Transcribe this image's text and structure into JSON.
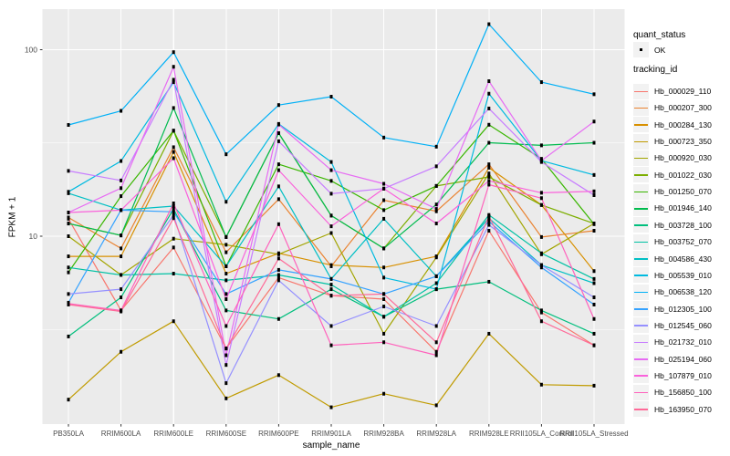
{
  "figure": {
    "background": "#FFFFFF",
    "panel_bg": "#EBEBEB",
    "grid_color": "#FFFFFF",
    "tick_color": "#333333",
    "tick_label_color": "#4D4D4D",
    "point_color": "#000000"
  },
  "legend": {
    "quant_status_title": "quant_status",
    "quant_status_items": [
      {
        "label": "OK"
      }
    ],
    "tracking_title": "tracking_id"
  },
  "chart_data": {
    "type": "line",
    "title": "",
    "xlabel": "sample_name",
    "ylabel": "FPKM + 1",
    "y_scale": "log10",
    "grid": true,
    "legend_position": "right",
    "ylim": [
      1,
      165
    ],
    "y_ticks": [
      {
        "value": 10,
        "label": "10"
      },
      {
        "value": 100,
        "label": "100"
      }
    ],
    "y_minor": [
      3.1623,
      31.623
    ],
    "categories": [
      "PB350LA",
      "RRIM600LA",
      "RRIM600LE",
      "RRIM600SE",
      "RRIM600PE",
      "RRIM901LA",
      "RRIM928BA",
      "RRIM928LA",
      "RRIM928LE",
      "RRII105LA_Control",
      "RRII105LA_Stressed"
    ],
    "series": [
      {
        "name": "Hb_000029_110",
        "color": "#F8766D",
        "values": [
          12.4,
          4.0,
          8.7,
          2.5,
          6.0,
          4.8,
          4.6,
          2.4,
          10.7,
          3.9,
          2.6
        ]
      },
      {
        "name": "Hb_000207_300",
        "color": "#EA8331",
        "values": [
          12.6,
          8.6,
          30.0,
          8.2,
          15.8,
          6.9,
          15.6,
          13.6,
          24.3,
          9.9,
          10.7
        ]
      },
      {
        "name": "Hb_000284_130",
        "color": "#D89000",
        "values": [
          7.8,
          7.8,
          28.3,
          6.3,
          8.1,
          7.0,
          6.8,
          7.8,
          23.3,
          14.7,
          6.5
        ]
      },
      {
        "name": "Hb_000723_350",
        "color": "#C09B00",
        "values": [
          1.33,
          2.4,
          3.5,
          1.35,
          1.8,
          1.21,
          1.43,
          1.24,
          3.0,
          1.6,
          1.58
        ]
      },
      {
        "name": "Hb_000920_030",
        "color": "#A3A500",
        "values": [
          10.0,
          6.2,
          9.7,
          9.0,
          8.0,
          10.4,
          3.0,
          7.7,
          21.7,
          8.0,
          11.7
        ]
      },
      {
        "name": "Hb_001022_030",
        "color": "#7CAE00",
        "values": [
          11.7,
          10.1,
          36.8,
          9.9,
          35.7,
          12.9,
          8.6,
          18.6,
          20.8,
          14.7,
          11.7
        ]
      },
      {
        "name": "Hb_001250_070",
        "color": "#39B600",
        "values": [
          6.4,
          16.4,
          36.8,
          6.9,
          24.3,
          19.8,
          13.8,
          18.6,
          39.6,
          26.0,
          11.6
        ]
      },
      {
        "name": "Hb_001946_140",
        "color": "#00BB4E",
        "values": [
          11.7,
          10.1,
          48.7,
          9.9,
          35.7,
          12.9,
          8.6,
          14.8,
          31.7,
          30.7,
          31.7
        ]
      },
      {
        "name": "Hb_003728_100",
        "color": "#00BF7D",
        "values": [
          2.9,
          4.7,
          14.0,
          4.0,
          3.6,
          5.2,
          3.7,
          5.2,
          5.7,
          4.0,
          3.0
        ]
      },
      {
        "name": "Hb_003752_070",
        "color": "#00C1A3",
        "values": [
          6.8,
          6.2,
          6.3,
          5.8,
          6.2,
          5.5,
          3.7,
          5.6,
          13.0,
          8.1,
          5.9
        ]
      },
      {
        "name": "Hb_004586_430",
        "color": "#00BFC4",
        "values": [
          17.0,
          13.8,
          14.5,
          6.9,
          18.5,
          5.9,
          12.4,
          6.1,
          12.5,
          7.0,
          5.6
        ]
      },
      {
        "name": "Hb_005539_010",
        "color": "#00BAE0",
        "values": [
          17.3,
          25.3,
          67.0,
          15.3,
          40.0,
          25.0,
          6.0,
          5.2,
          58.1,
          25.4,
          21.3
        ]
      },
      {
        "name": "Hb_006538_120",
        "color": "#00B0F6",
        "values": [
          39.5,
          47.0,
          97.0,
          27.5,
          50.5,
          56.0,
          33.8,
          30.2,
          137.0,
          67.0,
          57.7
        ]
      },
      {
        "name": "Hb_012305_100",
        "color": "#35A2FF",
        "values": [
          4.4,
          13.8,
          13.5,
          4.9,
          6.6,
          5.9,
          4.9,
          6.1,
          12.0,
          6.8,
          4.3
        ]
      },
      {
        "name": "Hb_012545_060",
        "color": "#9590FF",
        "values": [
          4.9,
          5.2,
          13.0,
          1.63,
          5.8,
          3.3,
          4.2,
          3.3,
          11.5,
          7.0,
          4.7
        ]
      },
      {
        "name": "Hb_021732_010",
        "color": "#C77CFF",
        "values": [
          22.4,
          19.9,
          69.0,
          2.04,
          32.3,
          16.9,
          18.0,
          23.7,
          48.4,
          25.0,
          16.6
        ]
      },
      {
        "name": "Hb_025194_060",
        "color": "#E76BF3",
        "values": [
          13.4,
          18.1,
          81.0,
          2.3,
          39.7,
          22.6,
          19.1,
          14.0,
          67.8,
          25.4,
          41.2
        ]
      },
      {
        "name": "Hb_107879_010",
        "color": "#FA62DB",
        "values": [
          13.4,
          13.8,
          26.2,
          4.6,
          22.6,
          11.3,
          18.0,
          11.7,
          19.8,
          17.1,
          17.4
        ]
      },
      {
        "name": "Hb_156850_100",
        "color": "#FF62BC",
        "values": [
          4.35,
          4.0,
          15.0,
          3.3,
          11.6,
          2.6,
          2.7,
          2.3,
          18.9,
          16.0,
          3.6
        ]
      },
      {
        "name": "Hb_163950_070",
        "color": "#FF6A98",
        "values": [
          4.3,
          3.95,
          12.5,
          2.5,
          7.6,
          4.8,
          4.9,
          2.7,
          12.8,
          3.5,
          2.6
        ]
      }
    ]
  }
}
